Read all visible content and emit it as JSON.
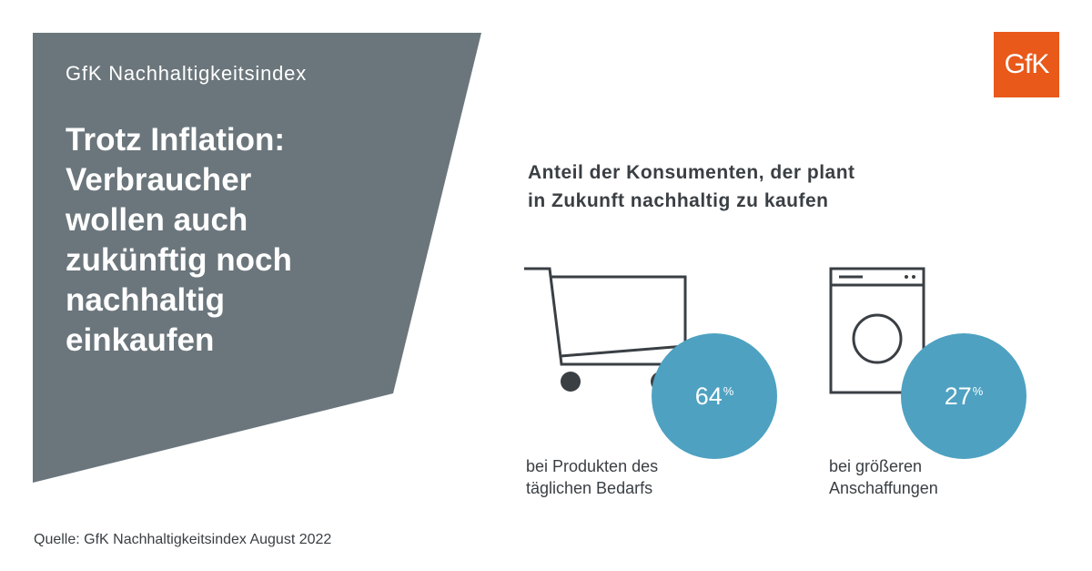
{
  "header": {
    "subtitle": "GfK Nachhaltigkeitsindex",
    "headline_lines": [
      "Trotz Inflation:",
      "Verbraucher",
      "wollen auch",
      "zukünftig noch",
      "nachhaltig",
      "einkaufen"
    ]
  },
  "logo": {
    "text": "GfK",
    "color": "#e8591a"
  },
  "question_lines": [
    "Anteil der Konsumenten, der plant",
    "in Zukunft nachhaltig zu kaufen"
  ],
  "stats": [
    {
      "icon": "shopping-cart-icon",
      "value": "64",
      "unit": "%",
      "caption_lines": [
        "bei Produkten des",
        "täglichen Bedarfs"
      ]
    },
    {
      "icon": "washing-machine-icon",
      "value": "27",
      "unit": "%",
      "caption_lines": [
        "bei größeren",
        "Anschaffungen"
      ]
    }
  ],
  "source": "Quelle: GfK Nachhaltigkeitsindex August 2022",
  "colors": {
    "panel": "#6b767c",
    "bubble": "#4ea1c1",
    "text": "#3a3f44",
    "brand": "#e8591a"
  }
}
